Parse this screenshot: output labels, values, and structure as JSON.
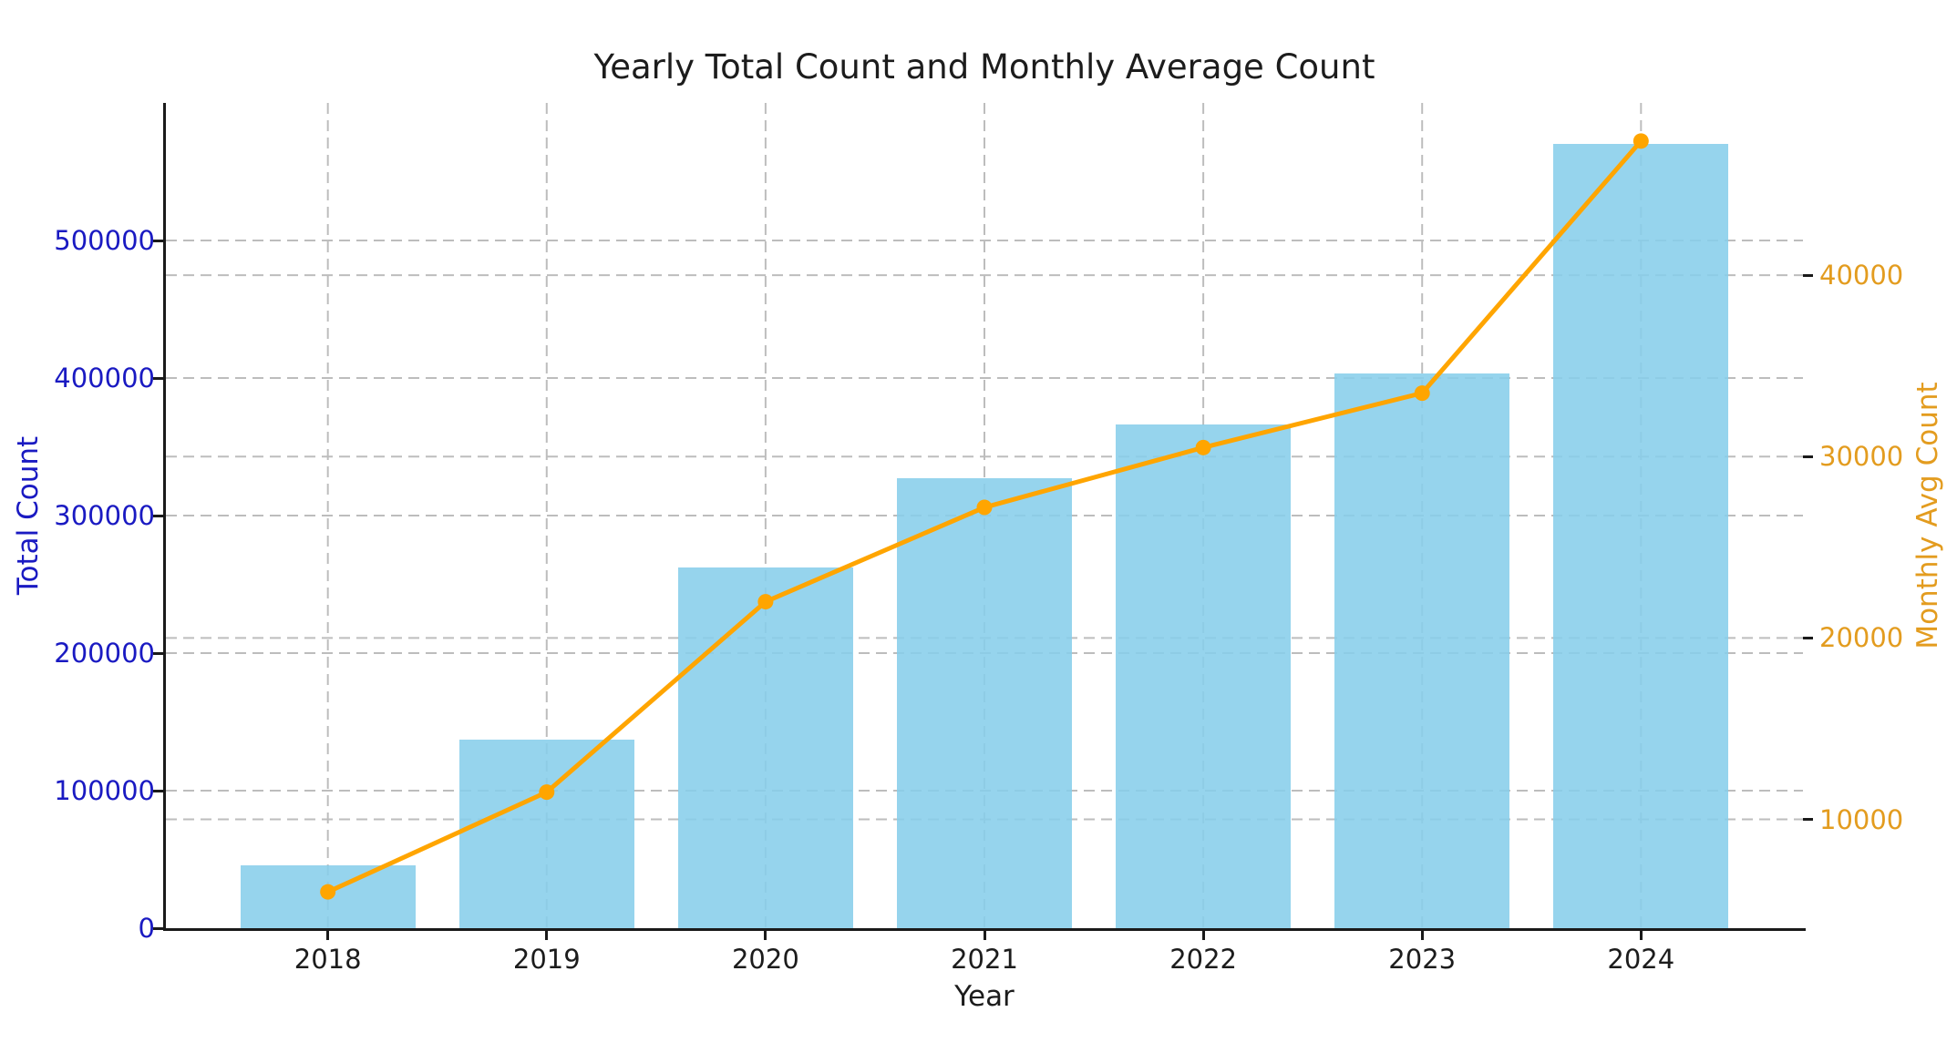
{
  "chart_data": {
    "type": "bar",
    "combo": "bar series on left axis + line series with circle markers on right axis (dual y-axis)",
    "title": "Yearly Total Count and Monthly Average Count",
    "xlabel": "Year",
    "categories": [
      "2018",
      "2019",
      "2020",
      "2021",
      "2022",
      "2023",
      "2024"
    ],
    "series": [
      {
        "name": "Total Count",
        "type": "bar",
        "axis": "left",
        "color": "#87CEEB",
        "values": [
          46000,
          137000,
          262000,
          327000,
          366000,
          403000,
          570000
        ]
      },
      {
        "name": "Monthly Avg Count",
        "type": "line",
        "axis": "right",
        "color": "#FFA500",
        "marker": "circle",
        "values": [
          6000,
          11500,
          22000,
          27200,
          30500,
          33500,
          47400
        ]
      }
    ],
    "left_axis": {
      "label": "Total Count",
      "color": "#1a1ac2",
      "ylim": [
        0,
        600000
      ],
      "ticks": [
        0,
        100000,
        200000,
        300000,
        400000,
        500000
      ],
      "tick_labels": [
        "0",
        "100000",
        "200000",
        "300000",
        "400000",
        "500000"
      ]
    },
    "right_axis": {
      "label": "Monthly Avg Count",
      "color": "#e39c1f",
      "ylim": [
        4000,
        49500
      ],
      "ticks": [
        10000,
        20000,
        30000,
        40000
      ],
      "tick_labels": [
        "10000",
        "20000",
        "30000",
        "40000"
      ]
    },
    "x_axis": {
      "label": "Year",
      "tick_labels": [
        "2018",
        "2019",
        "2020",
        "2021",
        "2022",
        "2023",
        "2024"
      ]
    },
    "grid": {
      "on": true,
      "style": "dashed",
      "color": "#bdbdbd",
      "vertical_at_each_year": true,
      "horizontal_at_left_ticks": true,
      "horizontal_at_right_ticks": true
    },
    "bar_width_fraction": 0.8,
    "legend": "none",
    "spines": [
      "left",
      "bottom"
    ]
  },
  "colors": {
    "background": "#ffffff",
    "bar_fill": "#87CEEB",
    "line": "#FFA500",
    "spine": "#1a1a1a",
    "title_text": "#1c1c1c",
    "left_axis_text": "#1a1ac2",
    "right_axis_text": "#e39c1f"
  }
}
